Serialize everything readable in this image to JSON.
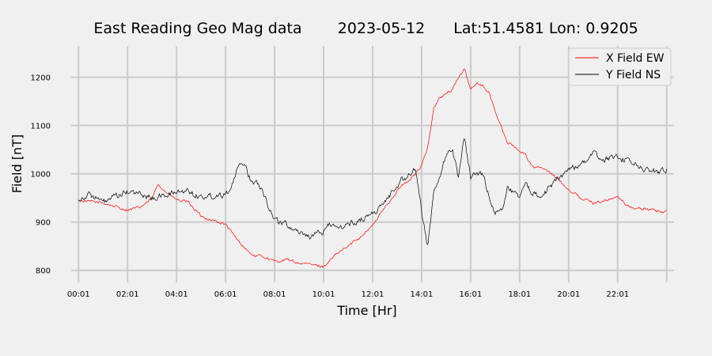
{
  "chart_data": {
    "type": "line",
    "title_parts": [
      "East Reading Geo Mag data",
      "2023-05-12",
      "Lat:51.4581  Lon: 0.9205"
    ],
    "xlabel": "Time  [Hr]",
    "ylabel": "Field  [nT]",
    "xlim": [
      -0.3,
      24.3
    ],
    "ylim": [
      775,
      1265
    ],
    "x_ticks": [
      "00:01",
      "02:01",
      "04:01",
      "06:01",
      "08:01",
      "10:01",
      "12:01",
      "14:01",
      "16:01",
      "18:01",
      "20:01",
      "22:01"
    ],
    "y_ticks": [
      800,
      900,
      1000,
      1100,
      1200
    ],
    "grid": true,
    "legend_position": "top-right",
    "series": [
      {
        "name": "X Field EW",
        "color": "#ff0000",
        "x": [
          0,
          0.5,
          1,
          1.5,
          2,
          2.5,
          3,
          3.25,
          3.5,
          4,
          4.5,
          5,
          5.5,
          6,
          6.25,
          6.5,
          7,
          7.25,
          7.5,
          8,
          8.5,
          9,
          9.5,
          10,
          10.5,
          11,
          11.5,
          12,
          12.5,
          13,
          13.25,
          13.5,
          13.75,
          14,
          14.25,
          14.5,
          14.75,
          15,
          15.25,
          15.5,
          15.75,
          16,
          16.25,
          16.5,
          16.75,
          17,
          17.5,
          18,
          18.25,
          18.5,
          19,
          19.5,
          20,
          20.5,
          21,
          21.5,
          22,
          22.5,
          23,
          23.5,
          24
        ],
        "y": [
          945,
          942,
          940,
          932,
          925,
          930,
          948,
          980,
          965,
          946,
          940,
          912,
          903,
          895,
          878,
          862,
          835,
          828,
          830,
          818,
          822,
          815,
          812,
          808,
          832,
          850,
          870,
          893,
          930,
          965,
          978,
          985,
          1000,
          1020,
          1055,
          1135,
          1158,
          1165,
          1175,
          1200,
          1215,
          1175,
          1190,
          1182,
          1168,
          1130,
          1065,
          1048,
          1040,
          1015,
          1010,
          992,
          968,
          950,
          940,
          945,
          952,
          930,
          928,
          925,
          920
        ]
      },
      {
        "name": "Y Field NS",
        "color": "#000000",
        "x": [
          0,
          0.5,
          1,
          1.5,
          2,
          2.5,
          3,
          3.5,
          4,
          4.5,
          5,
          5.5,
          6,
          6.25,
          6.5,
          6.75,
          7,
          7.5,
          7.75,
          8,
          8.5,
          9,
          9.5,
          10,
          10.25,
          10.5,
          11,
          11.5,
          12,
          12.5,
          13,
          13.5,
          13.75,
          14,
          14.25,
          14.5,
          14.75,
          15,
          15.25,
          15.5,
          15.75,
          16,
          16.5,
          17,
          17.25,
          17.5,
          18,
          18.25,
          18.5,
          19,
          19.5,
          20,
          20.5,
          21,
          21.5,
          22,
          22.5,
          23,
          23.5,
          24
        ],
        "y": [
          948,
          958,
          940,
          952,
          962,
          958,
          950,
          955,
          962,
          965,
          952,
          955,
          960,
          975,
          1010,
          1025,
          990,
          970,
          935,
          905,
          895,
          880,
          870,
          880,
          900,
          885,
          895,
          905,
          918,
          940,
          978,
          1000,
          1010,
          920,
          850,
          970,
          990,
          1035,
          1055,
          990,
          1080,
          995,
          1000,
          915,
          925,
          970,
          955,
          975,
          960,
          960,
          985,
          1010,
          1020,
          1040,
          1030,
          1035,
          1025,
          1010,
          1005,
          1010
        ]
      }
    ]
  }
}
